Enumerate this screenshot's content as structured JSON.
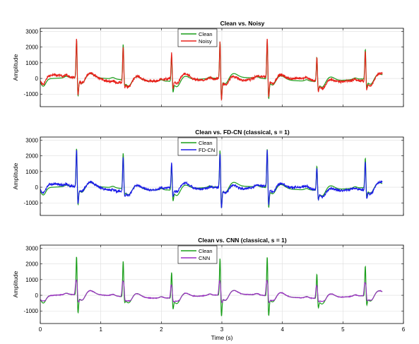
{
  "figure": {
    "xlabel": "Time (s)"
  },
  "chart_data": [
    {
      "type": "line",
      "title": "Clean vs. Noisy",
      "ylabel": "Amplitude",
      "xlabel": "",
      "xlim": [
        0,
        6
      ],
      "ylim": [
        -1800,
        3200
      ],
      "xticks": [
        "0",
        "1",
        "2",
        "3",
        "4",
        "5",
        "6"
      ],
      "yticks": [
        "-1000",
        "0",
        "1000",
        "2000",
        "3000"
      ],
      "grid": true,
      "legend_position": "top-center",
      "series": [
        {
          "name": "Clean",
          "color": "#1a9e1a"
        },
        {
          "name": "Noisy",
          "color": "#e8201a"
        }
      ]
    },
    {
      "type": "line",
      "title": "Clean vs. FD-CN (classical, s = 1)",
      "ylabel": "Amplitude",
      "xlabel": "",
      "xlim": [
        0,
        6
      ],
      "ylim": [
        -1800,
        3200
      ],
      "xticks": [
        "0",
        "1",
        "2",
        "3",
        "4",
        "5",
        "6"
      ],
      "yticks": [
        "-1000",
        "0",
        "1000",
        "2000",
        "3000"
      ],
      "grid": true,
      "legend_position": "top-center",
      "series": [
        {
          "name": "Clean",
          "color": "#1a9e1a"
        },
        {
          "name": "FD-CN",
          "color": "#1a1ae8"
        }
      ]
    },
    {
      "type": "line",
      "title": "Clean vs. CNN (classical, s = 1)",
      "ylabel": "Amplitude",
      "xlabel": "Time (s)",
      "xlim": [
        0,
        6
      ],
      "ylim": [
        -1800,
        3200
      ],
      "xticks": [
        "0",
        "1",
        "2",
        "3",
        "4",
        "5",
        "6"
      ],
      "yticks": [
        "-1000",
        "0",
        "1000",
        "2000",
        "3000"
      ],
      "grid": true,
      "legend_position": "top-center",
      "series": [
        {
          "name": "Clean",
          "color": "#1a9e1a"
        },
        {
          "name": "CNN",
          "color": "#9b2bc4"
        }
      ]
    }
  ],
  "signal": {
    "duration_s": 5.65,
    "beats": [
      {
        "t": 0.6,
        "peak": 2900,
        "trough": -1100
      },
      {
        "t": 1.37,
        "peak": 2650,
        "trough": -250
      },
      {
        "t": 2.17,
        "peak": 2050,
        "trough": -600
      },
      {
        "t": 2.97,
        "peak": 2800,
        "trough": -1300
      },
      {
        "t": 3.75,
        "peak": 2950,
        "trough": -1200
      },
      {
        "t": 4.57,
        "peak": 1950,
        "trough": -500
      },
      {
        "t": 5.37,
        "peak": 2300,
        "trough": -500
      }
    ]
  }
}
